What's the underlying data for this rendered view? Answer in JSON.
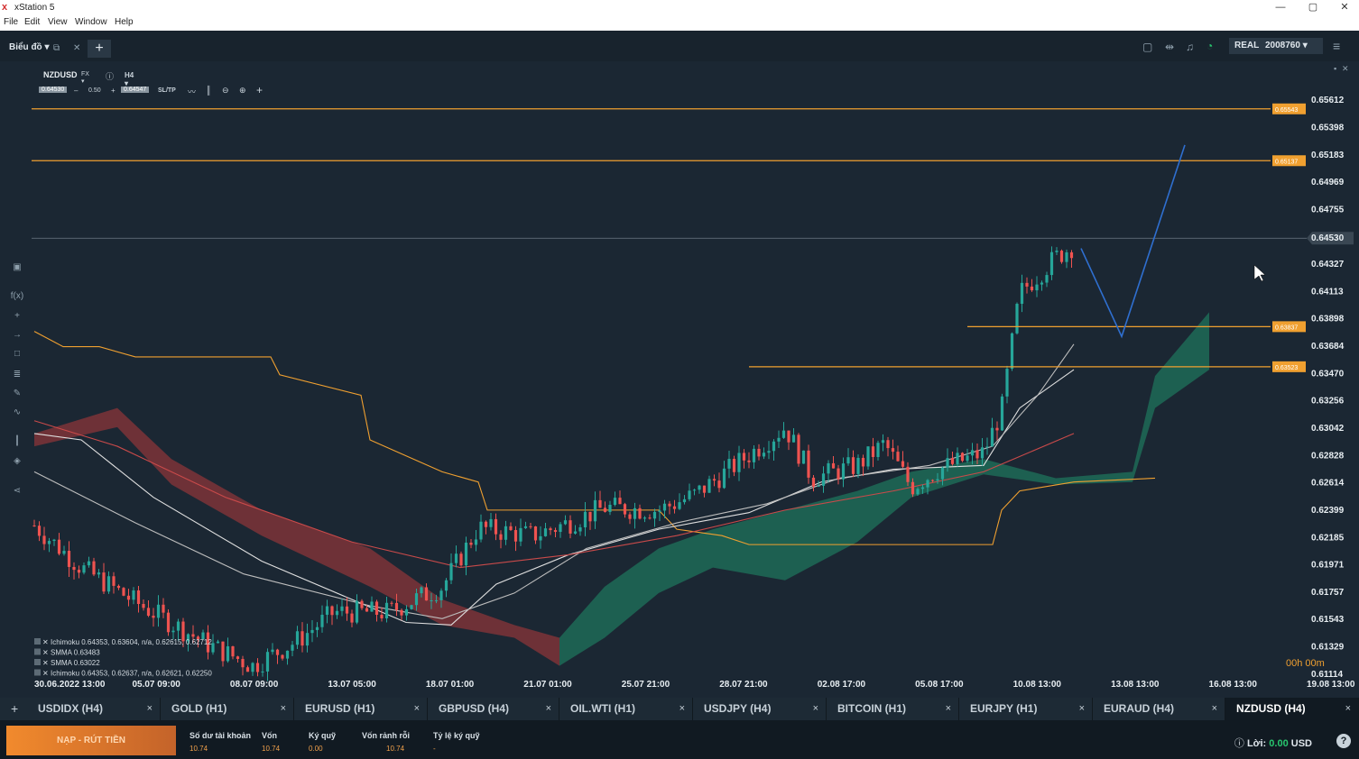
{
  "window": {
    "title": "xStation 5",
    "minimize_icon": "—",
    "maximize_icon": "▢",
    "close_icon": "✕"
  },
  "menu": [
    "File",
    "Edit",
    "View",
    "Window",
    "Help"
  ],
  "toolbar": {
    "workspace_label": "Biểu đồ ▾",
    "account_type": "REAL",
    "account_number": "2008760 ▾"
  },
  "chart": {
    "symbol": "NZDUSD",
    "symbol_type": "FX ▾",
    "timeframe": "H4 ▾",
    "sell_price": "0.64530",
    "spread_minus": "–",
    "volume": "0.50",
    "spread_plus": "+",
    "buy_price": "0.64547",
    "sltp_label": "SL/TP",
    "countdown": "00h 00m",
    "current_price": "0.64530"
  },
  "indicators": [
    "Ichimoku 0.64353, 0.63604, n/a, 0.62615, 0.62712",
    "SMMA 0.63483",
    "SMMA 0.63022",
    "Ichimoku 0.64353, 0.62637, n/a, 0.62621, 0.62250"
  ],
  "chart_data": {
    "type": "candlestick",
    "symbol": "NZDUSD",
    "timeframe": "H4",
    "y_ticks": [
      "0.65612",
      "0.65398",
      "0.65183",
      "0.64969",
      "0.64755",
      "0.64530",
      "0.64327",
      "0.64113",
      "0.63898",
      "0.63684",
      "0.63470",
      "0.63256",
      "0.63042",
      "0.62828",
      "0.62614",
      "0.62399",
      "0.62185",
      "0.61971",
      "0.61757",
      "0.61543",
      "0.61329",
      "0.61114"
    ],
    "x_ticks": [
      "30.06.2022 13:00",
      "05.07 09:00",
      "08.07 09:00",
      "13.07 05:00",
      "18.07 01:00",
      "21.07 01:00",
      "25.07 21:00",
      "28.07 21:00",
      "02.08 17:00",
      "05.08 17:00",
      "10.08 13:00",
      "13.08 13:00",
      "16.08 13:00",
      "19.08 13:00"
    ],
    "ylim": [
      0.61114,
      0.65612
    ],
    "horizontal_levels": [
      "0.65543",
      "0.65137",
      "0.63837",
      "0.63523"
    ],
    "projection_path": [
      0.6445,
      0.6376,
      0.6526
    ],
    "grid": false
  },
  "tabs": [
    {
      "label": "USDIDX (H4)",
      "close": "×"
    },
    {
      "label": "GOLD (H1)",
      "close": "×"
    },
    {
      "label": "EURUSD (H1)",
      "close": "×"
    },
    {
      "label": "GBPUSD (H4)",
      "close": "×"
    },
    {
      "label": "OIL.WTI (H1)",
      "close": "×"
    },
    {
      "label": "USDJPY (H4)",
      "close": "×"
    },
    {
      "label": "BITCOIN (H1)",
      "close": "×"
    },
    {
      "label": "EURJPY (H1)",
      "close": "×"
    },
    {
      "label": "EURAUD (H4)",
      "close": "×"
    },
    {
      "label": "NZDUSD (H4)",
      "close": "×"
    }
  ],
  "add_tab_icon": "+",
  "footer": {
    "deposit_label": "NẠP - RÚT TIỀN",
    "accounts": [
      {
        "label": "Số dư tài khoản",
        "value": "10.74"
      },
      {
        "label": "Vốn",
        "value": "10.74"
      },
      {
        "label": "Ký quỹ",
        "value": "0.00"
      },
      {
        "label": "Vốn rảnh rỗi",
        "value": "10.74"
      },
      {
        "label": "Tỷ lệ ký quỹ",
        "value": "-"
      }
    ],
    "profit_label": "Lời:",
    "profit_value": "0.00",
    "profit_currency": "USD",
    "help_icon": "?"
  },
  "colors": {
    "background": "#1b2733",
    "up": "#26a69a",
    "down": "#ef5350",
    "level": "#f0a030",
    "accent": "#f18a2d"
  }
}
